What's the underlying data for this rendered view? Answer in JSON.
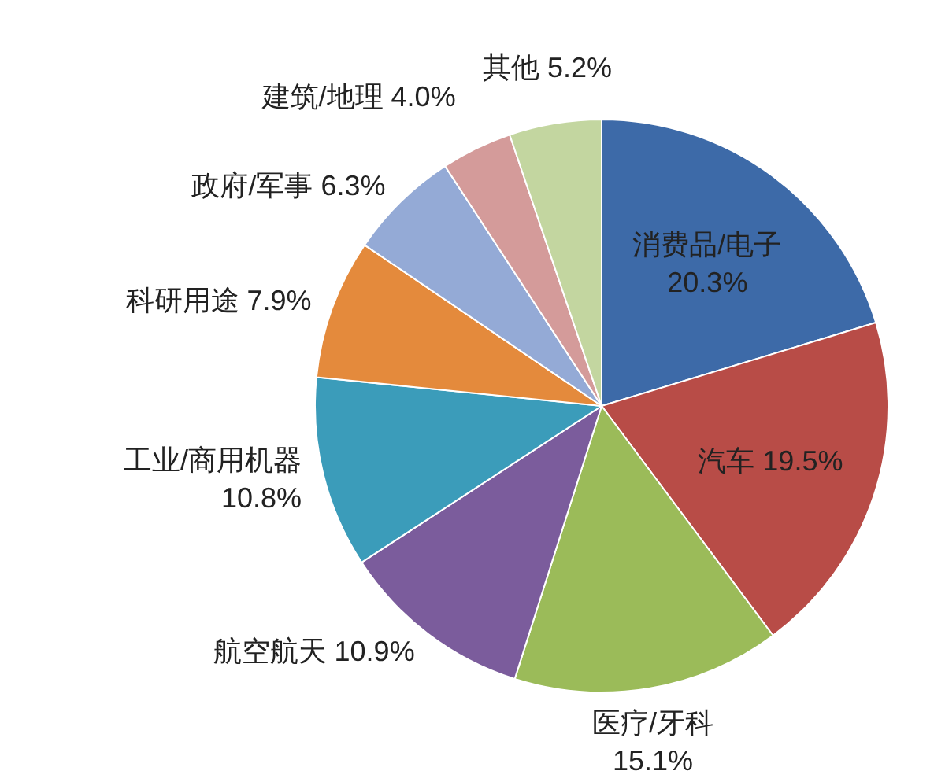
{
  "chart_data": {
    "type": "pie",
    "categories": [
      "消费品/电子",
      "汽车",
      "医疗/牙科",
      "航空航天",
      "工业/商用机器",
      "科研用途",
      "政府/军事",
      "建筑/地理",
      "其他"
    ],
    "values": [
      20.3,
      19.5,
      15.1,
      10.9,
      10.8,
      7.9,
      6.3,
      4.0,
      5.2
    ],
    "colors": [
      "#3d6aa8",
      "#b84c47",
      "#9bbb59",
      "#7b5c9c",
      "#3b9cba",
      "#e48a3c",
      "#94aad6",
      "#d49b9a",
      "#c3d6a0"
    ],
    "value_labels": [
      "20.3%",
      "19.5%",
      "15.1%",
      "10.9%",
      "10.8%",
      "7.9%",
      "6.3%",
      "4.0%",
      "5.2%"
    ]
  }
}
